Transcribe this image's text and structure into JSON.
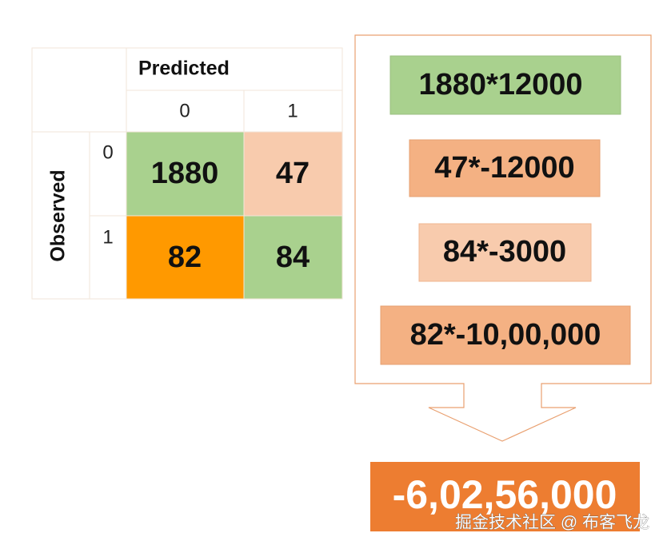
{
  "matrix": {
    "column_header": "Predicted",
    "row_header": "Observed",
    "column_labels": [
      "0",
      "1"
    ],
    "row_labels": [
      "0",
      "1"
    ],
    "cells": [
      [
        "1880",
        "47"
      ],
      [
        "82",
        "84"
      ]
    ]
  },
  "terms": [
    "1880*12000",
    "47*-12000",
    "84*-3000",
    "82*-10,00,000"
  ],
  "result": "-6,02,56,000",
  "watermark": "掘金技术社区 @ 布客飞龙"
}
